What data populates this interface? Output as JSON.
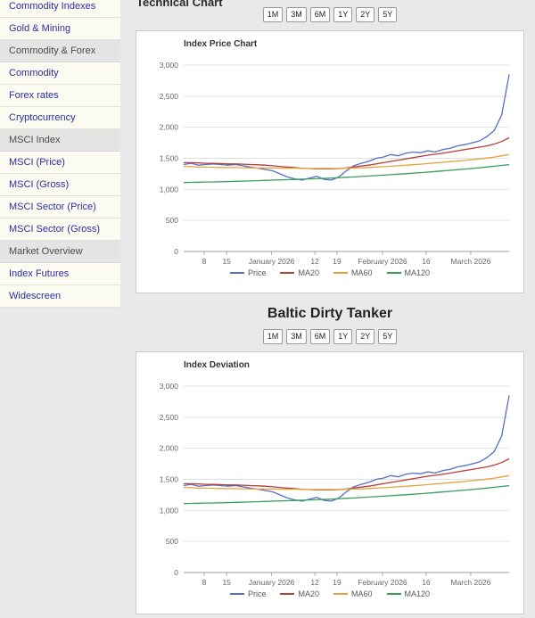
{
  "page": {
    "section_title": "Technical Chart",
    "instrument_title": "Baltic Dirty Tanker",
    "range_buttons": [
      "1M",
      "3M",
      "6M",
      "1Y",
      "2Y",
      "5Y"
    ]
  },
  "sidebar": {
    "items": [
      {
        "label": "Commodity Indexes",
        "type": "link"
      },
      {
        "label": "Gold & Mining",
        "type": "link"
      },
      {
        "label": "Commodity & Forex",
        "type": "header"
      },
      {
        "label": "Commodity",
        "type": "link"
      },
      {
        "label": "Forex rates",
        "type": "link"
      },
      {
        "label": "Cryptocurrency",
        "type": "link"
      },
      {
        "label": "MSCI Index",
        "type": "header"
      },
      {
        "label": "MSCI (Price)",
        "type": "link"
      },
      {
        "label": "MSCI (Gross)",
        "type": "link"
      },
      {
        "label": "MSCI Sector (Price)",
        "type": "link"
      },
      {
        "label": "MSCI Sector (Gross)",
        "type": "link"
      },
      {
        "label": "Market Overview",
        "type": "header"
      },
      {
        "label": "Index Futures",
        "type": "link"
      },
      {
        "label": "Widescreen",
        "type": "link"
      }
    ]
  },
  "colors": {
    "price": "#5470c6",
    "ma20": "#b5403c",
    "ma60": "#e6a23c",
    "ma120": "#3a9e5f"
  },
  "chart_data": [
    {
      "type": "line",
      "title": "Index Price Chart",
      "ylim": [
        0,
        3000
      ],
      "yticks": [
        0,
        500,
        1000,
        1500,
        2000,
        2500,
        3000
      ],
      "ytick_labels": [
        "0",
        "500",
        "1,000",
        "1,500",
        "2,000",
        "2,500",
        "3,000"
      ],
      "xticks": [
        {
          "pos": 0.063,
          "label": "8"
        },
        {
          "pos": 0.132,
          "label": "15"
        },
        {
          "pos": 0.27,
          "label": "January 2026"
        },
        {
          "pos": 0.403,
          "label": "12"
        },
        {
          "pos": 0.471,
          "label": "19"
        },
        {
          "pos": 0.611,
          "label": "February 2026"
        },
        {
          "pos": 0.745,
          "label": "16"
        },
        {
          "pos": 0.882,
          "label": "March 2026"
        }
      ],
      "grid": true,
      "legend_position": "bottom",
      "series": [
        {
          "name": "Price",
          "color": "#5470c6",
          "values": [
            1400,
            1420,
            1390,
            1400,
            1410,
            1400,
            1390,
            1400,
            1380,
            1360,
            1340,
            1320,
            1300,
            1250,
            1200,
            1170,
            1150,
            1180,
            1210,
            1160,
            1150,
            1200,
            1300,
            1380,
            1420,
            1450,
            1500,
            1520,
            1560,
            1540,
            1580,
            1600,
            1590,
            1620,
            1600,
            1640,
            1660,
            1700,
            1720,
            1750,
            1780,
            1850,
            1950,
            2200,
            2850
          ]
        },
        {
          "name": "MA20",
          "color": "#b5403c",
          "values": [
            1430,
            1430,
            1425,
            1420,
            1420,
            1415,
            1410,
            1410,
            1405,
            1400,
            1395,
            1390,
            1380,
            1370,
            1360,
            1350,
            1340,
            1335,
            1330,
            1330,
            1330,
            1335,
            1345,
            1360,
            1375,
            1390,
            1410,
            1430,
            1450,
            1470,
            1490,
            1510,
            1530,
            1550,
            1565,
            1580,
            1600,
            1620,
            1640,
            1660,
            1680,
            1700,
            1730,
            1770,
            1830
          ]
        },
        {
          "name": "MA60",
          "color": "#e6a23c",
          "values": [
            1370,
            1365,
            1360,
            1358,
            1355,
            1352,
            1350,
            1350,
            1348,
            1346,
            1345,
            1344,
            1343,
            1342,
            1340,
            1340,
            1338,
            1337,
            1336,
            1336,
            1337,
            1338,
            1340,
            1343,
            1347,
            1352,
            1358,
            1365,
            1372,
            1380,
            1388,
            1396,
            1405,
            1415,
            1425,
            1435,
            1445,
            1455,
            1465,
            1478,
            1490,
            1505,
            1520,
            1540,
            1560
          ]
        },
        {
          "name": "MA120",
          "color": "#3a9e5f",
          "values": [
            1110,
            1112,
            1115,
            1118,
            1120,
            1123,
            1126,
            1130,
            1133,
            1136,
            1140,
            1144,
            1148,
            1152,
            1156,
            1160,
            1164,
            1168,
            1172,
            1177,
            1182,
            1188,
            1194,
            1200,
            1207,
            1214,
            1221,
            1228,
            1236,
            1244,
            1252,
            1260,
            1269,
            1278,
            1287,
            1296,
            1306,
            1316,
            1326,
            1337,
            1348,
            1360,
            1372,
            1385,
            1400
          ]
        }
      ]
    },
    {
      "type": "line",
      "title": "Index Deviation",
      "ylim": [
        0,
        3000
      ],
      "yticks": [
        0,
        500,
        1000,
        1500,
        2000,
        2500,
        3000
      ],
      "ytick_labels": [
        "0",
        "500",
        "1,000",
        "1,500",
        "2,000",
        "2,500",
        "3,000"
      ],
      "xticks": [
        {
          "pos": 0.063,
          "label": "8"
        },
        {
          "pos": 0.132,
          "label": "15"
        },
        {
          "pos": 0.27,
          "label": "January 2026"
        },
        {
          "pos": 0.403,
          "label": "12"
        },
        {
          "pos": 0.471,
          "label": "19"
        },
        {
          "pos": 0.611,
          "label": "February 2026"
        },
        {
          "pos": 0.745,
          "label": "16"
        },
        {
          "pos": 0.882,
          "label": "March 2026"
        }
      ],
      "grid": true,
      "legend_position": "bottom",
      "series": [
        {
          "name": "Price",
          "color": "#5470c6",
          "values": [
            1400,
            1420,
            1390,
            1400,
            1410,
            1400,
            1390,
            1400,
            1380,
            1360,
            1340,
            1320,
            1300,
            1250,
            1200,
            1170,
            1150,
            1180,
            1210,
            1160,
            1150,
            1200,
            1300,
            1380,
            1420,
            1450,
            1500,
            1520,
            1560,
            1540,
            1580,
            1600,
            1590,
            1620,
            1600,
            1640,
            1660,
            1700,
            1720,
            1750,
            1780,
            1850,
            1950,
            2200,
            2850
          ]
        },
        {
          "name": "MA20",
          "color": "#b5403c",
          "values": [
            1430,
            1430,
            1425,
            1420,
            1420,
            1415,
            1410,
            1410,
            1405,
            1400,
            1395,
            1390,
            1380,
            1370,
            1360,
            1350,
            1340,
            1335,
            1330,
            1330,
            1330,
            1335,
            1345,
            1360,
            1375,
            1390,
            1410,
            1430,
            1450,
            1470,
            1490,
            1510,
            1530,
            1550,
            1565,
            1580,
            1600,
            1620,
            1640,
            1660,
            1680,
            1700,
            1730,
            1770,
            1830
          ]
        },
        {
          "name": "MA60",
          "color": "#e6a23c",
          "values": [
            1370,
            1365,
            1360,
            1358,
            1355,
            1352,
            1350,
            1350,
            1348,
            1346,
            1345,
            1344,
            1343,
            1342,
            1340,
            1340,
            1338,
            1337,
            1336,
            1336,
            1337,
            1338,
            1340,
            1343,
            1347,
            1352,
            1358,
            1365,
            1372,
            1380,
            1388,
            1396,
            1405,
            1415,
            1425,
            1435,
            1445,
            1455,
            1465,
            1478,
            1490,
            1505,
            1520,
            1540,
            1560
          ]
        },
        {
          "name": "MA120",
          "color": "#3a9e5f",
          "values": [
            1110,
            1112,
            1115,
            1118,
            1120,
            1123,
            1126,
            1130,
            1133,
            1136,
            1140,
            1144,
            1148,
            1152,
            1156,
            1160,
            1164,
            1168,
            1172,
            1177,
            1182,
            1188,
            1194,
            1200,
            1207,
            1214,
            1221,
            1228,
            1236,
            1244,
            1252,
            1260,
            1269,
            1278,
            1287,
            1296,
            1306,
            1316,
            1326,
            1337,
            1348,
            1360,
            1372,
            1385,
            1400
          ]
        }
      ]
    }
  ]
}
